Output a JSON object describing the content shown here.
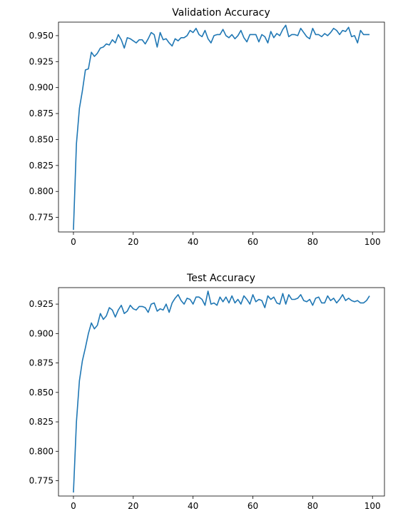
{
  "chart_data": [
    {
      "type": "line",
      "title": "Validation Accuracy",
      "xlabel": "",
      "ylabel": "",
      "xlim": [
        -5,
        104
      ],
      "ylim": [
        0.761,
        0.963
      ],
      "xticks": [
        0,
        20,
        40,
        60,
        80,
        100
      ],
      "yticks": [
        0.775,
        0.8,
        0.825,
        0.85,
        0.875,
        0.9,
        0.925,
        0.95
      ],
      "ytick_labels": [
        "0.775",
        "0.800",
        "0.825",
        "0.850",
        "0.875",
        "0.900",
        "0.925",
        "0.950"
      ],
      "xtick_labels": [
        "0",
        "20",
        "40",
        "60",
        "80",
        "100"
      ],
      "grid": false,
      "line_color": "#1f77b4",
      "series": [
        {
          "x": [
            0,
            1,
            2,
            3,
            4,
            5,
            6,
            7,
            8,
            9,
            10,
            11,
            12,
            13,
            14,
            15,
            16,
            17,
            18,
            19,
            20,
            21,
            22,
            23,
            24,
            25,
            26,
            27,
            28,
            29,
            30,
            31,
            32,
            33,
            34,
            35,
            36,
            37,
            38,
            39,
            40,
            41,
            42,
            43,
            44,
            45,
            46,
            47,
            48,
            49,
            50,
            51,
            52,
            53,
            54,
            55,
            56,
            57,
            58,
            59,
            60,
            61,
            62,
            63,
            64,
            65,
            66,
            67,
            68,
            69,
            70,
            71,
            72,
            73,
            74,
            75,
            76,
            77,
            78,
            79,
            80,
            81,
            82,
            83,
            84,
            85,
            86,
            87,
            88,
            89,
            90,
            91,
            92,
            93,
            94,
            95,
            96,
            97,
            98,
            99
          ],
          "values": [
            0.763,
            0.846,
            0.88,
            0.897,
            0.917,
            0.918,
            0.934,
            0.93,
            0.933,
            0.938,
            0.939,
            0.942,
            0.941,
            0.946,
            0.943,
            0.951,
            0.946,
            0.938,
            0.948,
            0.947,
            0.945,
            0.943,
            0.946,
            0.946,
            0.942,
            0.947,
            0.953,
            0.951,
            0.939,
            0.953,
            0.946,
            0.947,
            0.943,
            0.94,
            0.947,
            0.945,
            0.948,
            0.948,
            0.95,
            0.955,
            0.953,
            0.957,
            0.951,
            0.949,
            0.955,
            0.947,
            0.943,
            0.95,
            0.951,
            0.951,
            0.956,
            0.95,
            0.948,
            0.951,
            0.947,
            0.95,
            0.955,
            0.948,
            0.944,
            0.951,
            0.951,
            0.951,
            0.944,
            0.951,
            0.949,
            0.943,
            0.954,
            0.948,
            0.952,
            0.95,
            0.956,
            0.96,
            0.949,
            0.951,
            0.951,
            0.95,
            0.957,
            0.953,
            0.949,
            0.947,
            0.957,
            0.951,
            0.951,
            0.949,
            0.952,
            0.95,
            0.953,
            0.957,
            0.955,
            0.951,
            0.955,
            0.954,
            0.958,
            0.949,
            0.95,
            0.943,
            0.955,
            0.951,
            0.951,
            0.951
          ]
        }
      ]
    },
    {
      "type": "line",
      "title": "Test Accuracy",
      "xlabel": "",
      "ylabel": "",
      "xlim": [
        -5,
        104
      ],
      "ylim": [
        0.762,
        0.939
      ],
      "xticks": [
        0,
        20,
        40,
        60,
        80,
        100
      ],
      "yticks": [
        0.775,
        0.8,
        0.825,
        0.85,
        0.875,
        0.9,
        0.925
      ],
      "ytick_labels": [
        "0.775",
        "0.800",
        "0.825",
        "0.850",
        "0.875",
        "0.900",
        "0.925"
      ],
      "xtick_labels": [
        "0",
        "20",
        "40",
        "60",
        "80",
        "100"
      ],
      "grid": false,
      "line_color": "#1f77b4",
      "series": [
        {
          "x": [
            0,
            1,
            2,
            3,
            4,
            5,
            6,
            7,
            8,
            9,
            10,
            11,
            12,
            13,
            14,
            15,
            16,
            17,
            18,
            19,
            20,
            21,
            22,
            23,
            24,
            25,
            26,
            27,
            28,
            29,
            30,
            31,
            32,
            33,
            34,
            35,
            36,
            37,
            38,
            39,
            40,
            41,
            42,
            43,
            44,
            45,
            46,
            47,
            48,
            49,
            50,
            51,
            52,
            53,
            54,
            55,
            56,
            57,
            58,
            59,
            60,
            61,
            62,
            63,
            64,
            65,
            66,
            67,
            68,
            69,
            70,
            71,
            72,
            73,
            74,
            75,
            76,
            77,
            78,
            79,
            80,
            81,
            82,
            83,
            84,
            85,
            86,
            87,
            88,
            89,
            90,
            91,
            92,
            93,
            94,
            95,
            96,
            97,
            98,
            99
          ],
          "values": [
            0.765,
            0.825,
            0.86,
            0.877,
            0.888,
            0.9,
            0.909,
            0.904,
            0.907,
            0.917,
            0.912,
            0.915,
            0.922,
            0.92,
            0.914,
            0.92,
            0.924,
            0.917,
            0.919,
            0.924,
            0.921,
            0.92,
            0.923,
            0.923,
            0.922,
            0.918,
            0.925,
            0.926,
            0.919,
            0.921,
            0.92,
            0.925,
            0.918,
            0.926,
            0.93,
            0.933,
            0.928,
            0.925,
            0.93,
            0.929,
            0.925,
            0.931,
            0.931,
            0.929,
            0.924,
            0.936,
            0.925,
            0.926,
            0.924,
            0.931,
            0.927,
            0.931,
            0.926,
            0.932,
            0.926,
            0.929,
            0.925,
            0.932,
            0.929,
            0.925,
            0.933,
            0.927,
            0.929,
            0.928,
            0.922,
            0.932,
            0.929,
            0.931,
            0.926,
            0.925,
            0.934,
            0.925,
            0.933,
            0.929,
            0.929,
            0.93,
            0.933,
            0.928,
            0.927,
            0.929,
            0.924,
            0.93,
            0.931,
            0.926,
            0.926,
            0.932,
            0.928,
            0.93,
            0.926,
            0.929,
            0.933,
            0.928,
            0.93,
            0.928,
            0.927,
            0.928,
            0.926,
            0.926,
            0.928,
            0.932
          ]
        }
      ]
    }
  ]
}
